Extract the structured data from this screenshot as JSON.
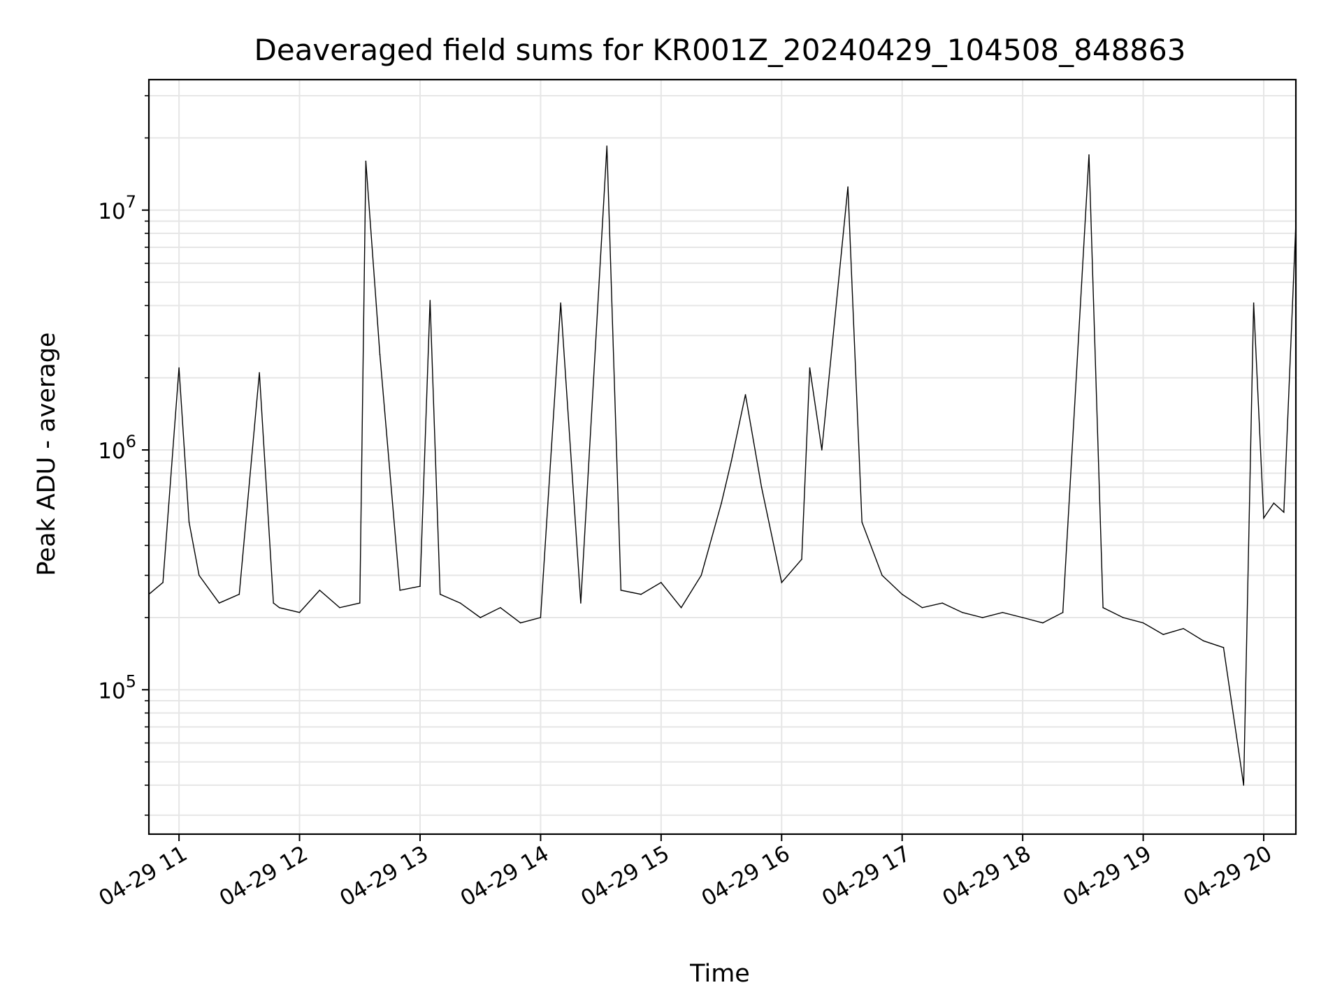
{
  "chart_data": {
    "type": "line",
    "title": "Deaveraged field sums for KR001Z_20240429_104508_848863",
    "xlabel": "Time",
    "ylabel": "Peak ADU - average",
    "yscale": "log",
    "ylim": [
      25000,
      35000000
    ],
    "xlim": [
      "2024-04-29 10:45",
      "2024-04-29 20:16"
    ],
    "grid": true,
    "line_color": "#000000",
    "grid_color": "#e6e6e6",
    "x_ticks": [
      {
        "value": "2024-04-29 11:00",
        "label": "04-29 11"
      },
      {
        "value": "2024-04-29 12:00",
        "label": "04-29 12"
      },
      {
        "value": "2024-04-29 13:00",
        "label": "04-29 13"
      },
      {
        "value": "2024-04-29 14:00",
        "label": "04-29 14"
      },
      {
        "value": "2024-04-29 15:00",
        "label": "04-29 15"
      },
      {
        "value": "2024-04-29 16:00",
        "label": "04-29 16"
      },
      {
        "value": "2024-04-29 17:00",
        "label": "04-29 17"
      },
      {
        "value": "2024-04-29 18:00",
        "label": "04-29 18"
      },
      {
        "value": "2024-04-29 19:00",
        "label": "04-29 19"
      },
      {
        "value": "2024-04-29 20:00",
        "label": "04-29 20"
      }
    ],
    "y_ticks": [
      {
        "value": 100000,
        "base": "10",
        "exp": "5"
      },
      {
        "value": 1000000,
        "base": "10",
        "exp": "6"
      },
      {
        "value": 10000000,
        "base": "10",
        "exp": "7"
      }
    ],
    "series": [
      {
        "x": [
          "2024-04-29 10:45",
          "2024-04-29 10:52",
          "2024-04-29 11:00",
          "2024-04-29 11:05",
          "2024-04-29 11:10",
          "2024-04-29 11:20",
          "2024-04-29 11:30",
          "2024-04-29 11:40",
          "2024-04-29 11:47",
          "2024-04-29 11:50",
          "2024-04-29 12:00",
          "2024-04-29 12:10",
          "2024-04-29 12:20",
          "2024-04-29 12:30",
          "2024-04-29 12:33",
          "2024-04-29 12:40",
          "2024-04-29 12:50",
          "2024-04-29 13:00",
          "2024-04-29 13:05",
          "2024-04-29 13:10",
          "2024-04-29 13:20",
          "2024-04-29 13:30",
          "2024-04-29 13:40",
          "2024-04-29 13:50",
          "2024-04-29 14:00",
          "2024-04-29 14:10",
          "2024-04-29 14:20",
          "2024-04-29 14:33",
          "2024-04-29 14:40",
          "2024-04-29 14:50",
          "2024-04-29 15:00",
          "2024-04-29 15:10",
          "2024-04-29 15:20",
          "2024-04-29 15:30",
          "2024-04-29 15:35",
          "2024-04-29 15:42",
          "2024-04-29 15:50",
          "2024-04-29 16:00",
          "2024-04-29 16:10",
          "2024-04-29 16:14",
          "2024-04-29 16:20",
          "2024-04-29 16:33",
          "2024-04-29 16:40",
          "2024-04-29 16:50",
          "2024-04-29 17:00",
          "2024-04-29 17:10",
          "2024-04-29 17:20",
          "2024-04-29 17:30",
          "2024-04-29 17:40",
          "2024-04-29 17:50",
          "2024-04-29 18:00",
          "2024-04-29 18:10",
          "2024-04-29 18:20",
          "2024-04-29 18:33",
          "2024-04-29 18:40",
          "2024-04-29 18:50",
          "2024-04-29 19:00",
          "2024-04-29 19:10",
          "2024-04-29 19:20",
          "2024-04-29 19:30",
          "2024-04-29 19:40",
          "2024-04-29 19:50",
          "2024-04-29 19:55",
          "2024-04-29 20:00",
          "2024-04-29 20:05",
          "2024-04-29 20:10",
          "2024-04-29 20:16"
        ],
        "y": [
          250000,
          280000,
          2200000,
          500000,
          300000,
          230000,
          250000,
          2100000,
          230000,
          220000,
          210000,
          260000,
          220000,
          230000,
          16000000,
          2500000,
          260000,
          270000,
          4200000,
          250000,
          230000,
          200000,
          220000,
          190000,
          200000,
          4100000,
          230000,
          18500000,
          260000,
          250000,
          280000,
          220000,
          300000,
          600000,
          900000,
          1700000,
          700000,
          280000,
          350000,
          2200000,
          1000000,
          12500000,
          500000,
          300000,
          250000,
          220000,
          230000,
          210000,
          200000,
          210000,
          200000,
          190000,
          210000,
          17000000,
          220000,
          200000,
          190000,
          170000,
          180000,
          160000,
          150000,
          40000,
          4100000,
          520000,
          600000,
          550000,
          8800000
        ]
      }
    ]
  }
}
